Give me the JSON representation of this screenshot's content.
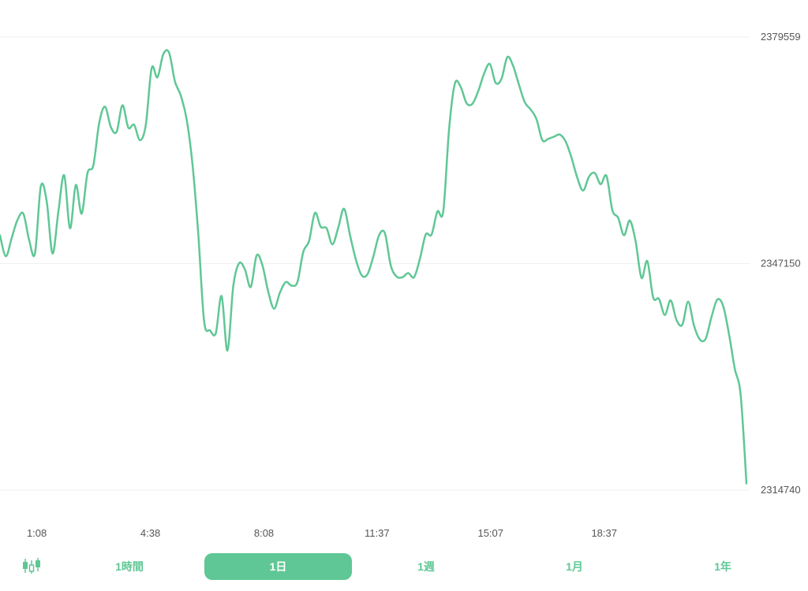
{
  "chart_data": {
    "type": "line",
    "title": "",
    "xlabel": "",
    "ylabel": "",
    "series_color": "#5fc795",
    "grid": true,
    "ylim": [
      2314740,
      2379559
    ],
    "yticks": [
      "2379559",
      "2347150",
      "2314740"
    ],
    "xticks": [
      "1:08",
      "4:38",
      "8:08",
      "11:37",
      "15:07",
      "18:37"
    ],
    "x_range": [
      0,
      1380
    ],
    "xtick_positions_min": [
      68,
      278,
      488,
      697,
      907,
      1117
    ],
    "values": [
      2351200,
      2348200,
      2350800,
      2353400,
      2354300,
      2350500,
      2348600,
      2358200,
      2356100,
      2348600,
      2354500,
      2359800,
      2352200,
      2358400,
      2354300,
      2360100,
      2361200,
      2367200,
      2369600,
      2366700,
      2366000,
      2369800,
      2366600,
      2367000,
      2364800,
      2367000,
      2375100,
      2373800,
      2377100,
      2377300,
      2373200,
      2371200,
      2367800,
      2361400,
      2351400,
      2338900,
      2337600,
      2337200,
      2342500,
      2334700,
      2343900,
      2347200,
      2346300,
      2343800,
      2348300,
      2346900,
      2343100,
      2340700,
      2343000,
      2344500,
      2344000,
      2344500,
      2348800,
      2350400,
      2354400,
      2352400,
      2352200,
      2349900,
      2352300,
      2355000,
      2351300,
      2347800,
      2345500,
      2345600,
      2348100,
      2351200,
      2351500,
      2346900,
      2345300,
      2345200,
      2345800,
      2345200,
      2347800,
      2351300,
      2351300,
      2354600,
      2354600,
      2366300,
      2372900,
      2372400,
      2370100,
      2370000,
      2371800,
      2374300,
      2375700,
      2373000,
      2373600,
      2376700,
      2375400,
      2372700,
      2370200,
      2369200,
      2367800,
      2364800,
      2365000,
      2365300,
      2365600,
      2364600,
      2362300,
      2359400,
      2357600,
      2359600,
      2360100,
      2358500,
      2359700,
      2354800,
      2353700,
      2351200,
      2353300,
      2350300,
      2345100,
      2347500,
      2342300,
      2342100,
      2339800,
      2341900,
      2339100,
      2338400,
      2341700,
      2338300,
      2336300,
      2336400,
      2339500,
      2342000,
      2341100,
      2337100,
      2332100,
      2328400,
      2315700
    ]
  },
  "range_tabs": {
    "candle_icon": "candlestick-icon",
    "items": [
      {
        "label": "1時間",
        "active": false
      },
      {
        "label": "1日",
        "active": true
      },
      {
        "label": "1週",
        "active": false
      },
      {
        "label": "1月",
        "active": false
      },
      {
        "label": "1年",
        "active": false
      }
    ]
  }
}
